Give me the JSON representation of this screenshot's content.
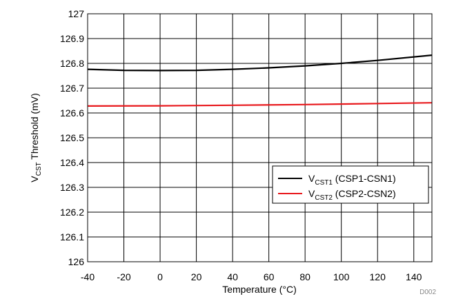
{
  "chart_data": {
    "type": "line",
    "xlabel": "Temperature (°C)",
    "ylabel": {
      "prefix": "V",
      "subscript": "CST",
      "suffix": " Threshold (mV)"
    },
    "xlim": [
      -40,
      150
    ],
    "ylim": [
      126,
      127
    ],
    "x_ticks": [
      -40,
      -20,
      0,
      20,
      40,
      60,
      80,
      100,
      120,
      140
    ],
    "y_ticks": [
      126,
      126.1,
      126.2,
      126.3,
      126.4,
      126.5,
      126.6,
      126.7,
      126.8,
      126.9,
      127
    ],
    "x_tick_labels": [
      "-40",
      "-20",
      "0",
      "20",
      "40",
      "60",
      "80",
      "100",
      "120",
      "140"
    ],
    "y_tick_labels": [
      "126",
      "126.1",
      "126.2",
      "126.3",
      "126.4",
      "126.5",
      "126.6",
      "126.7",
      "126.8",
      "126.9",
      "127"
    ],
    "grid": true,
    "legend_position": "right",
    "series": [
      {
        "label_prefix": "V",
        "label_subscript": "CST1",
        "label_suffix": " (CSP1-CSN1)",
        "color": "#000000",
        "x": [
          -40,
          -20,
          0,
          20,
          40,
          60,
          80,
          100,
          120,
          150
        ],
        "y": [
          126.776,
          126.772,
          126.771,
          126.772,
          126.776,
          126.782,
          126.79,
          126.8,
          126.812,
          126.833
        ]
      },
      {
        "label_prefix": "V",
        "label_subscript": "CST2",
        "label_suffix": " (CSP2-CSN2)",
        "color": "#e8171b",
        "x": [
          -40,
          0,
          40,
          80,
          120,
          150
        ],
        "y": [
          126.628,
          126.629,
          126.631,
          126.634,
          126.638,
          126.641
        ]
      }
    ]
  },
  "document_id": "D002"
}
